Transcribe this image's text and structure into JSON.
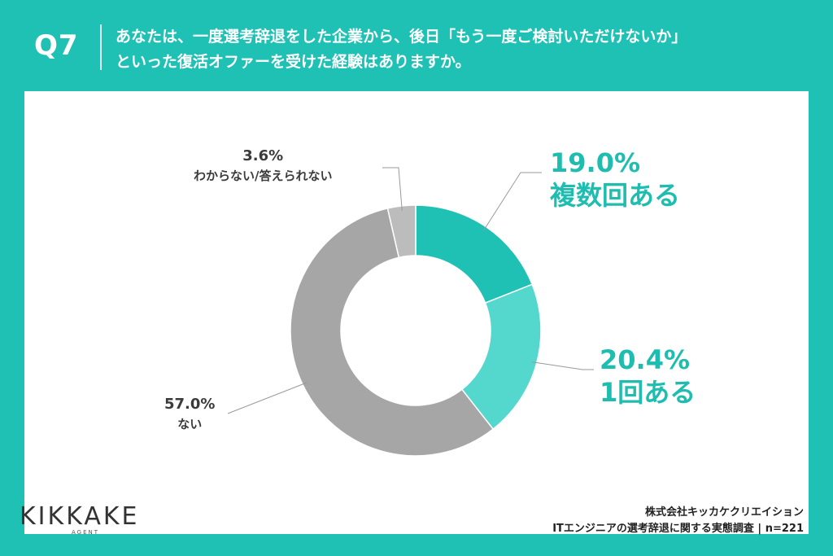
{
  "header": {
    "qnum": "Q7",
    "question_line1": "あなたは、一度選考辞退をした企業から、後日「もう一度ご検討いただけないか」",
    "question_line2": "といった復活オファーを受けた経験はありますか。"
  },
  "chart_data": {
    "type": "pie",
    "style": "donut",
    "slices": [
      {
        "label": "複数回ある",
        "value": 19.0,
        "display": "19.0%",
        "color": "#1ec1b4"
      },
      {
        "label": "1回ある",
        "value": 20.4,
        "display": "20.4%",
        "color": "#54d8ce"
      },
      {
        "label": "ない",
        "value": 57.0,
        "display": "57.0%",
        "color": "#a6a6a6"
      },
      {
        "label": "わからない/答えられない",
        "value": 3.6,
        "display": "3.6%",
        "color": "#bcbcbc"
      }
    ]
  },
  "footer": {
    "logo_text": "KIKKAKE",
    "logo_sub": "AGENT",
    "company": "株式会社キッカケクリエイション",
    "survey": "ITエンジニアの選考辞退に関する実態調査 | n=221"
  }
}
